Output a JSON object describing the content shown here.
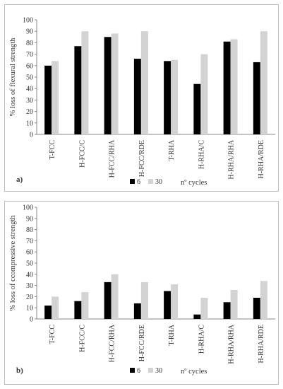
{
  "chart_data": [
    {
      "type": "bar",
      "panel_label": "a)",
      "ylabel": "% loss of flexural strength",
      "ylim": [
        0,
        100
      ],
      "yticks": [
        0,
        10,
        20,
        30,
        40,
        50,
        60,
        70,
        80,
        90,
        100
      ],
      "categories": [
        "T-FCC",
        "H-FCC/C",
        "H-FCC/RHA",
        "H-FCC/RDE",
        "T-RHA",
        "H-RHA/C",
        "H-RHA/RHA",
        "H-RHA/RDE"
      ],
      "series": [
        {
          "name": "6",
          "color": "#000000",
          "values": [
            60,
            77,
            85,
            66,
            64,
            44,
            81,
            63
          ]
        },
        {
          "name": "30",
          "color": "#d3d3d3",
          "values": [
            64,
            90,
            88,
            90,
            65,
            70,
            83,
            90
          ]
        }
      ],
      "legend_title": "nº cycles",
      "legend_position": "bottom",
      "grid": false
    },
    {
      "type": "bar",
      "panel_label": "b)",
      "ylabel": "% loss of ccompressive strength",
      "ylim": [
        0,
        100
      ],
      "yticks": [
        0,
        10,
        20,
        30,
        40,
        50,
        60,
        70,
        80,
        90,
        100
      ],
      "categories": [
        "T-FCC",
        "H-FCC/C",
        "H-FCC/RHA",
        "H-FCC/RDE",
        "T-RHA",
        "H-RHA/C",
        "H-RHA/RHA",
        "H-RHA/RDE"
      ],
      "series": [
        {
          "name": "6",
          "color": "#000000",
          "values": [
            12,
            16,
            33,
            14,
            25,
            4,
            15,
            19
          ]
        },
        {
          "name": "30",
          "color": "#d3d3d3",
          "values": [
            20,
            24,
            40,
            33,
            31,
            19,
            26,
            34
          ]
        }
      ],
      "legend_title": "nº cycles",
      "legend_position": "bottom",
      "grid": false
    }
  ]
}
